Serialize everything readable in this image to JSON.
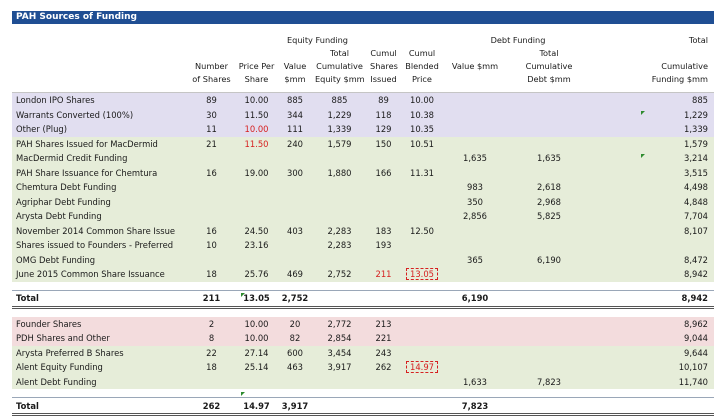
{
  "title": "PAH Sources of Funding",
  "headers": {
    "equity_group": "Equity Funding",
    "debt_group": "Debt Funding",
    "total_group": "Total",
    "row1": [
      "",
      "",
      "",
      "",
      "Total",
      "Cumul",
      "Cumul",
      "",
      "Total",
      ""
    ],
    "row2": [
      "",
      "Number",
      "Price Per",
      "Value",
      "Cumulative",
      "Shares",
      "Blended",
      "Value $mm",
      "Cumulative",
      "Cumulative"
    ],
    "row3": [
      "",
      "of Shares",
      "Share",
      "$mm",
      "Equity $mm",
      "Issued",
      "Price",
      "",
      "Debt $mm",
      "Funding $mm"
    ]
  },
  "section1": [
    {
      "label": "London IPO Shares",
      "shares": "89",
      "price": "10.00",
      "value": "885",
      "cum_eq": "885",
      "cum_sh": "89",
      "blend": "10.00",
      "debt": "",
      "cum_debt": "",
      "total": "885",
      "band": "purple"
    },
    {
      "label": "Warrants Converted (100%)",
      "shares": "30",
      "price": "11.50",
      "value": "344",
      "cum_eq": "1,229",
      "cum_sh": "118",
      "blend": "10.38",
      "debt": "",
      "cum_debt": "",
      "total": "1,229",
      "band": "purple"
    },
    {
      "label": "Other (Plug)",
      "shares": "11",
      "price": "10.00",
      "value": "111",
      "cum_eq": "1,339",
      "cum_sh": "129",
      "blend": "10.35",
      "debt": "",
      "cum_debt": "",
      "total": "1,339",
      "band": "purple",
      "price_red": true
    },
    {
      "label": "PAH Shares Issued for MacDermid",
      "shares": "21",
      "price": "11.50",
      "value": "240",
      "cum_eq": "1,579",
      "cum_sh": "150",
      "blend": "10.51",
      "debt": "",
      "cum_debt": "",
      "total": "1,579",
      "band": "green",
      "price_red": true
    },
    {
      "label": "MacDermid Credit Funding",
      "shares": "",
      "price": "",
      "value": "",
      "cum_eq": "",
      "cum_sh": "",
      "blend": "",
      "debt": "1,635",
      "cum_debt": "1,635",
      "total": "3,214",
      "band": "green"
    },
    {
      "label": "PAH Share Issuance for Chemtura",
      "shares": "16",
      "price": "19.00",
      "value": "300",
      "cum_eq": "1,880",
      "cum_sh": "166",
      "blend": "11.31",
      "debt": "",
      "cum_debt": "",
      "total": "3,515",
      "band": "green"
    },
    {
      "label": "Chemtura Debt Funding",
      "shares": "",
      "price": "",
      "value": "",
      "cum_eq": "",
      "cum_sh": "",
      "blend": "",
      "debt": "983",
      "cum_debt": "2,618",
      "total": "4,498",
      "band": "green"
    },
    {
      "label": "Agriphar Debt Funding",
      "shares": "",
      "price": "",
      "value": "",
      "cum_eq": "",
      "cum_sh": "",
      "blend": "",
      "debt": "350",
      "cum_debt": "2,968",
      "total": "4,848",
      "band": "green"
    },
    {
      "label": "Arysta Debt Funding",
      "shares": "",
      "price": "",
      "value": "",
      "cum_eq": "",
      "cum_sh": "",
      "blend": "",
      "debt": "2,856",
      "cum_debt": "5,825",
      "total": "7,704",
      "band": "green"
    },
    {
      "label": "November 2014 Common Share Issue",
      "shares": "16",
      "price": "24.50",
      "value": "403",
      "cum_eq": "2,283",
      "cum_sh": "183",
      "blend": "12.50",
      "debt": "",
      "cum_debt": "",
      "total": "8,107",
      "band": "green"
    },
    {
      "label": "Shares issued to Founders - Preferred",
      "shares": "10",
      "price": "23.16",
      "value": "",
      "cum_eq": "2,283",
      "cum_sh": "193",
      "blend": "",
      "debt": "",
      "cum_debt": "",
      "total": "",
      "band": "green"
    },
    {
      "label": "OMG Debt Funding",
      "shares": "",
      "price": "",
      "value": "",
      "cum_eq": "",
      "cum_sh": "",
      "blend": "",
      "debt": "365",
      "cum_debt": "6,190",
      "total": "8,472",
      "band": "green"
    },
    {
      "label": "June 2015 Common Share Issuance",
      "shares": "18",
      "price": "25.76",
      "value": "469",
      "cum_eq": "2,752",
      "cum_sh": "211",
      "blend": "13.05",
      "debt": "",
      "cum_debt": "",
      "total": "8,942",
      "band": "green",
      "cumsh_red": true,
      "blend_box": true
    }
  ],
  "total1": {
    "label": "Total",
    "shares": "211",
    "price": "13.05",
    "value": "2,752",
    "debt": "6,190",
    "total": "8,942"
  },
  "section2": [
    {
      "label": "Founder Shares",
      "shares": "2",
      "price": "10.00",
      "value": "20",
      "cum_eq": "2,772",
      "cum_sh": "213",
      "blend": "",
      "debt": "",
      "cum_debt": "",
      "total": "8,962",
      "band": "pink"
    },
    {
      "label": "PDH Shares and Other",
      "shares": "8",
      "price": "10.00",
      "value": "82",
      "cum_eq": "2,854",
      "cum_sh": "221",
      "blend": "",
      "debt": "",
      "cum_debt": "",
      "total": "9,044",
      "band": "pink"
    },
    {
      "label": "Arysta Preferred B Shares",
      "shares": "22",
      "price": "27.14",
      "value": "600",
      "cum_eq": "3,454",
      "cum_sh": "243",
      "blend": "",
      "debt": "",
      "cum_debt": "",
      "total": "9,644",
      "band": "green"
    },
    {
      "label": "Alent Equity Funding",
      "shares": "18",
      "price": "25.14",
      "value": "463",
      "cum_eq": "3,917",
      "cum_sh": "262",
      "blend": "14.97",
      "debt": "",
      "cum_debt": "",
      "total": "10,107",
      "band": "green",
      "blend_box": true
    },
    {
      "label": "Alent Debt Funding",
      "shares": "",
      "price": "",
      "value": "",
      "cum_eq": "",
      "cum_sh": "",
      "blend": "",
      "debt": "1,633",
      "cum_debt": "7,823",
      "total": "11,740",
      "band": "green"
    }
  ],
  "total2": {
    "label": "Total",
    "shares": "262",
    "price": "14.97",
    "value": "3,917",
    "debt": "7,823",
    "total": ""
  }
}
